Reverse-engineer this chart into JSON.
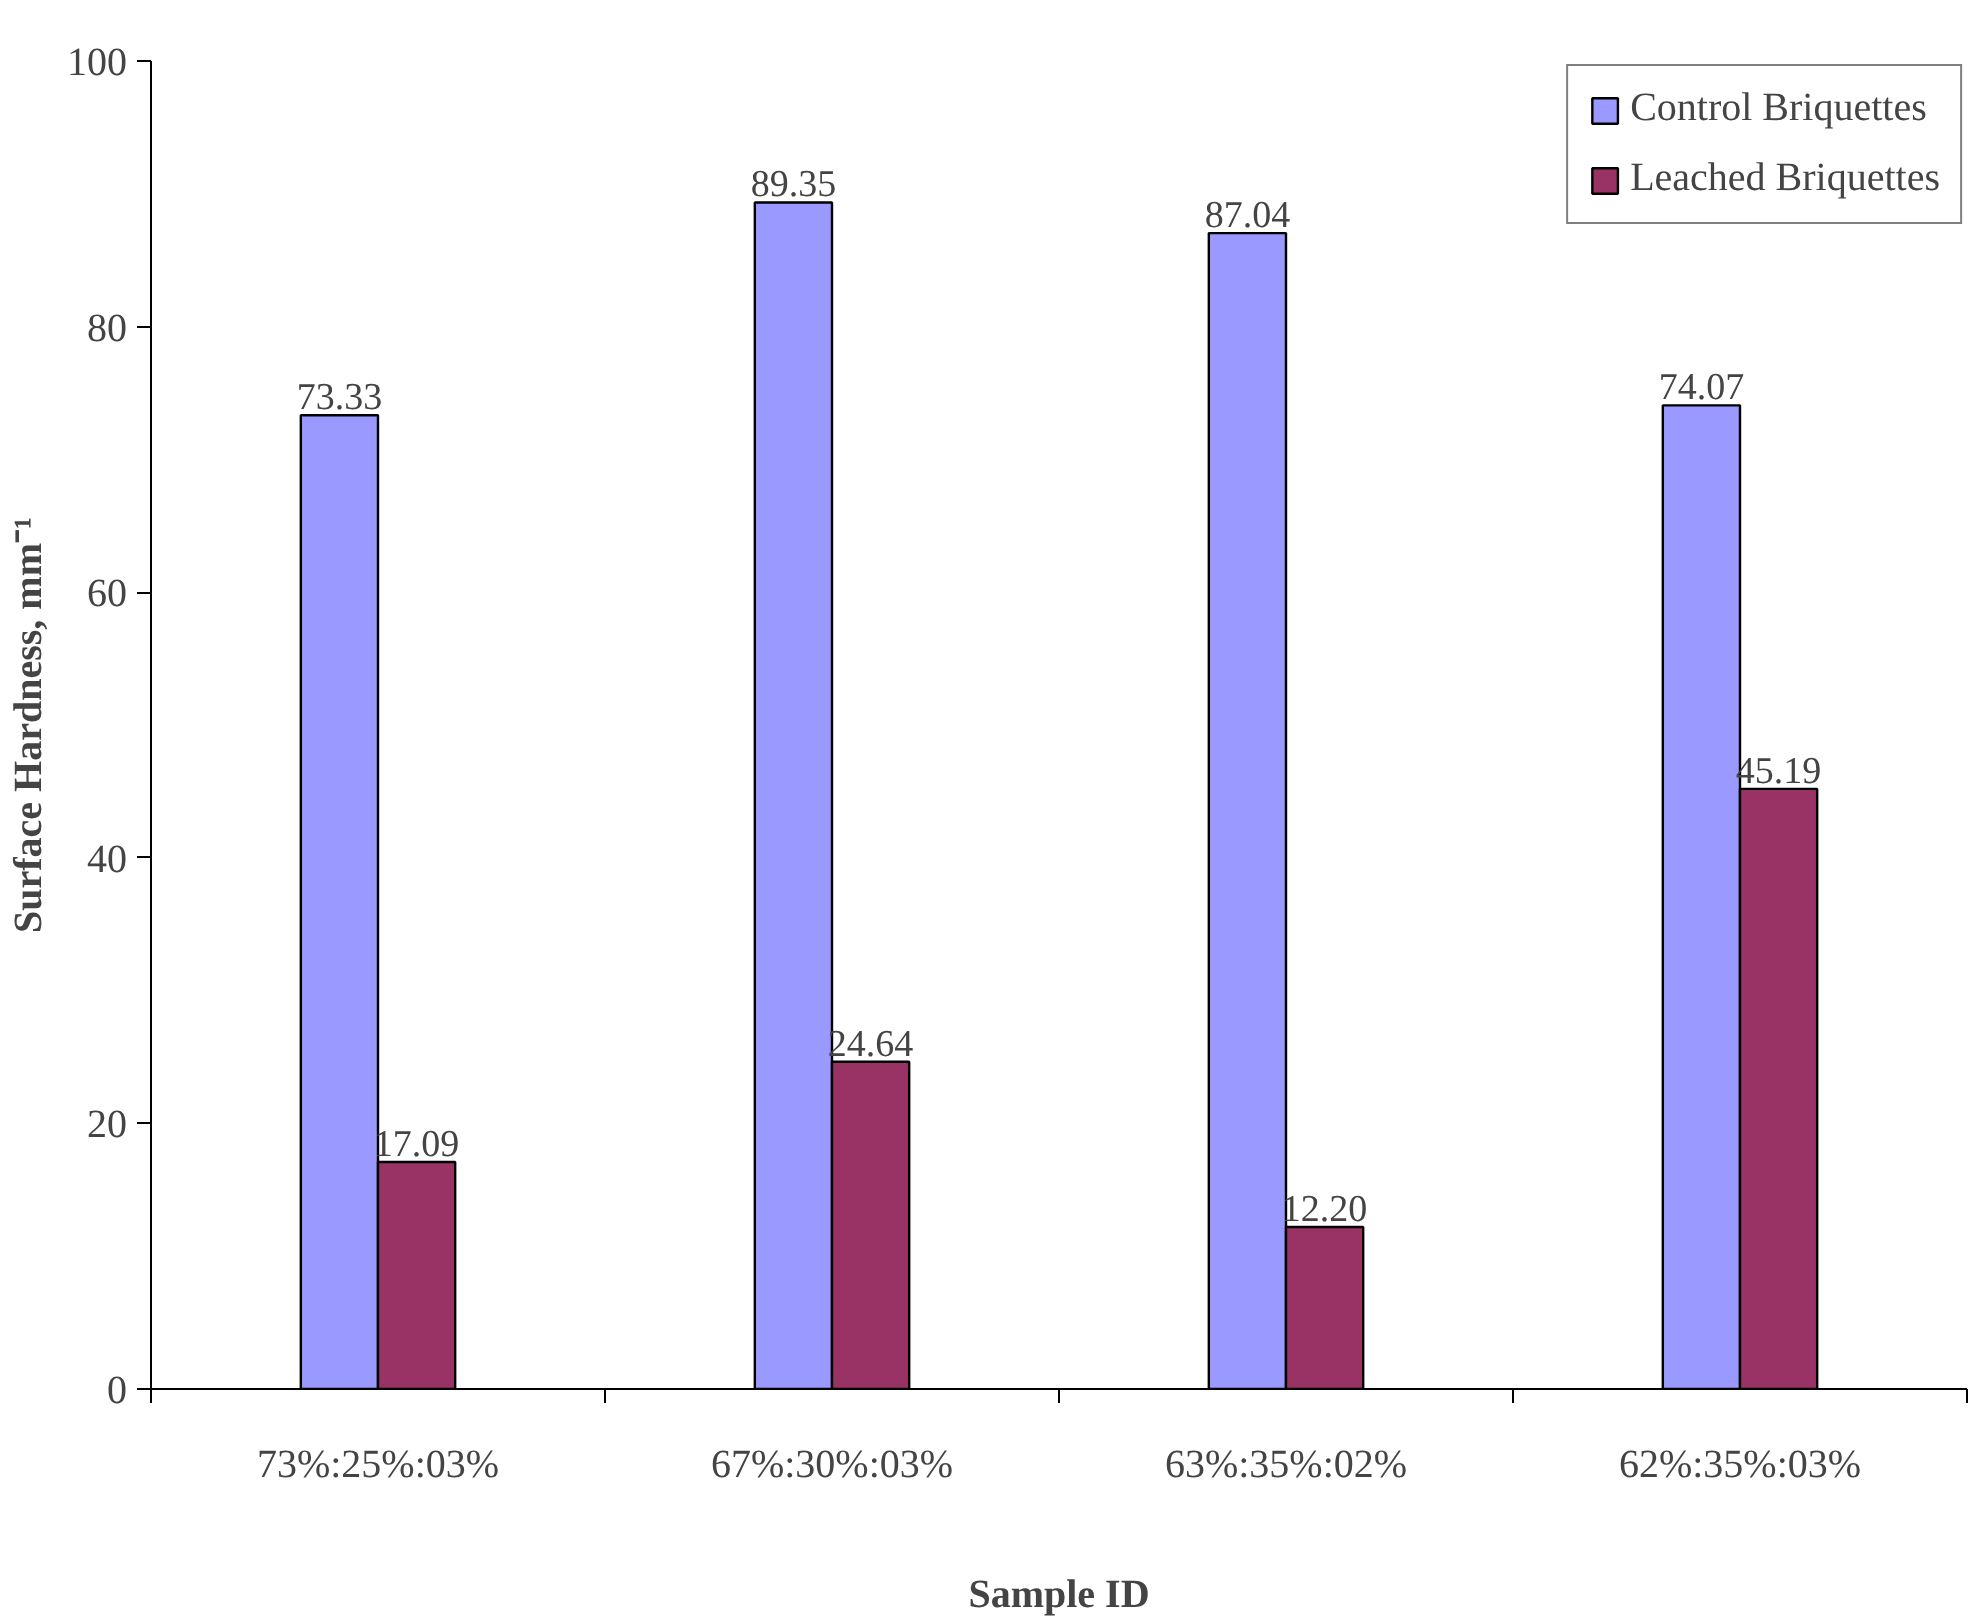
{
  "chart_data": {
    "type": "bar",
    "xlabel": "Sample ID",
    "ylabel": "Surface Hardness, mm⁻¹",
    "categories": [
      "73%:25%:03%",
      "67%:30%:03%",
      "63%:35%:02%",
      "62%:35%:03%"
    ],
    "series": [
      {
        "name": "Control Briquettes",
        "color": "#9999ff",
        "values": [
          73.33,
          89.35,
          87.04,
          74.07
        ],
        "value_labels": [
          "73.33",
          "89.35",
          "87.04",
          "74.07"
        ]
      },
      {
        "name": "Leached Briquettes",
        "color": "#993366",
        "values": [
          17.09,
          24.64,
          12.2,
          45.19
        ],
        "value_labels": [
          "17.09",
          "24.64",
          "12.20",
          "45.19"
        ]
      }
    ],
    "ylim": [
      0,
      100
    ],
    "yticks": [
      0,
      20,
      40,
      60,
      80,
      100
    ],
    "grid": false,
    "legend": "top right"
  }
}
